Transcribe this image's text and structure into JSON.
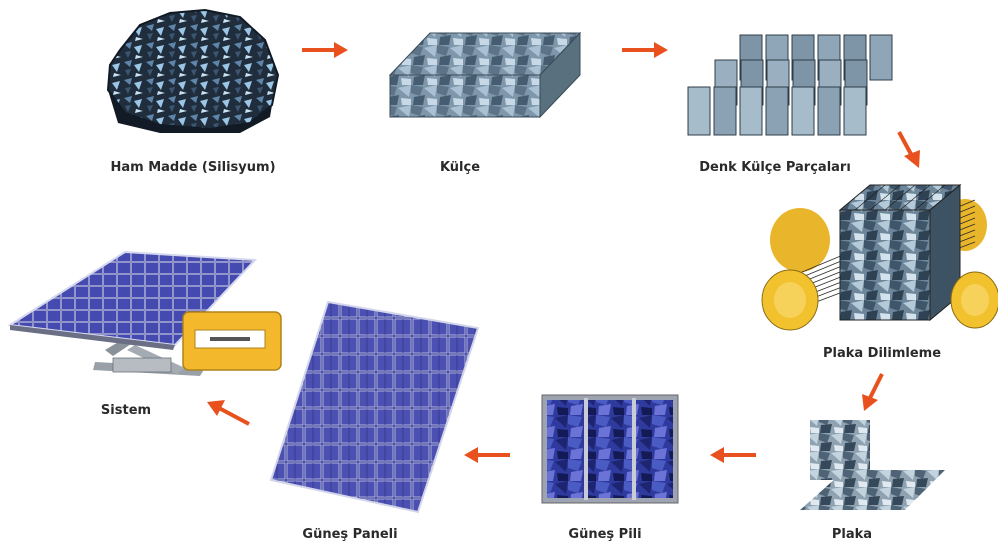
{
  "steps": {
    "raw_material": "Ham Madde (Silisyum)",
    "ingot": "Külçe",
    "ingot_pieces": "Denk Külçe Parçaları",
    "wafer_slicing": "Plaka Dilimleme",
    "wafer": "Plaka",
    "solar_cell": "Güneş Pili",
    "solar_panel": "Güneş Paneli",
    "system": "Sistem"
  },
  "colors": {
    "arrow": "#e8511e",
    "silicon_dark": "#1e2a38",
    "silicon_light": "#8fb6d6",
    "ingot_grey": "#7f97ab",
    "wire_yellow": "#f2c12e",
    "cell_blue": "#2f3a9e",
    "panel_blue": "#3b3f9c",
    "inverter_yellow": "#f4b82c"
  },
  "icons": [
    "raw-silicon-icon",
    "ingot-block-icon",
    "ingot-bricks-icon",
    "wire-saw-icon",
    "wafer-sheets-icon",
    "solar-cell-icon",
    "solar-panel-icon",
    "solar-system-icon"
  ]
}
